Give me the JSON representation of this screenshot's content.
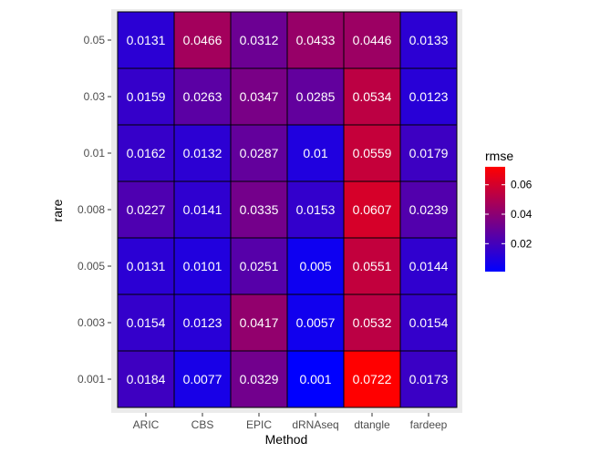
{
  "chart_data": {
    "type": "heatmap",
    "title": "",
    "xlabel": "Method",
    "ylabel": "rare",
    "x_categories": [
      "ARIC",
      "CBS",
      "EPIC",
      "dRNAseq",
      "dtangle",
      "fardeep"
    ],
    "y_categories": [
      "0.05",
      "0.03",
      "0.01",
      "0.008",
      "0.005",
      "0.003",
      "0.001"
    ],
    "cells": [
      [
        "0.0131",
        "0.0466",
        "0.0312",
        "0.0433",
        "0.0446",
        "0.0133"
      ],
      [
        "0.0159",
        "0.0263",
        "0.0347",
        "0.0285",
        "0.0534",
        "0.0123"
      ],
      [
        "0.0162",
        "0.0132",
        "0.0287",
        "0.01",
        "0.0559",
        "0.0179"
      ],
      [
        "0.0227",
        "0.0141",
        "0.0335",
        "0.0153",
        "0.0607",
        "0.0239"
      ],
      [
        "0.0131",
        "0.0101",
        "0.0251",
        "0.005",
        "0.0551",
        "0.0144"
      ],
      [
        "0.0154",
        "0.0123",
        "0.0417",
        "0.0057",
        "0.0532",
        "0.0154"
      ],
      [
        "0.0184",
        "0.0077",
        "0.0329",
        "0.001",
        "0.0722",
        "0.0173"
      ]
    ],
    "legend": {
      "title": "rmse",
      "position": "right",
      "ticks": [
        "0.02",
        "0.04",
        "0.06"
      ],
      "range": [
        0.001,
        0.0722
      ],
      "low_color": "#0000ff",
      "high_color": "#ff0000"
    },
    "colors": {
      "panel_background": "#ebebeb",
      "cell_border": "#000000",
      "cell_text": "#ffffff",
      "axis_text": "#4d4d4d",
      "axis_title": "#000000"
    }
  }
}
